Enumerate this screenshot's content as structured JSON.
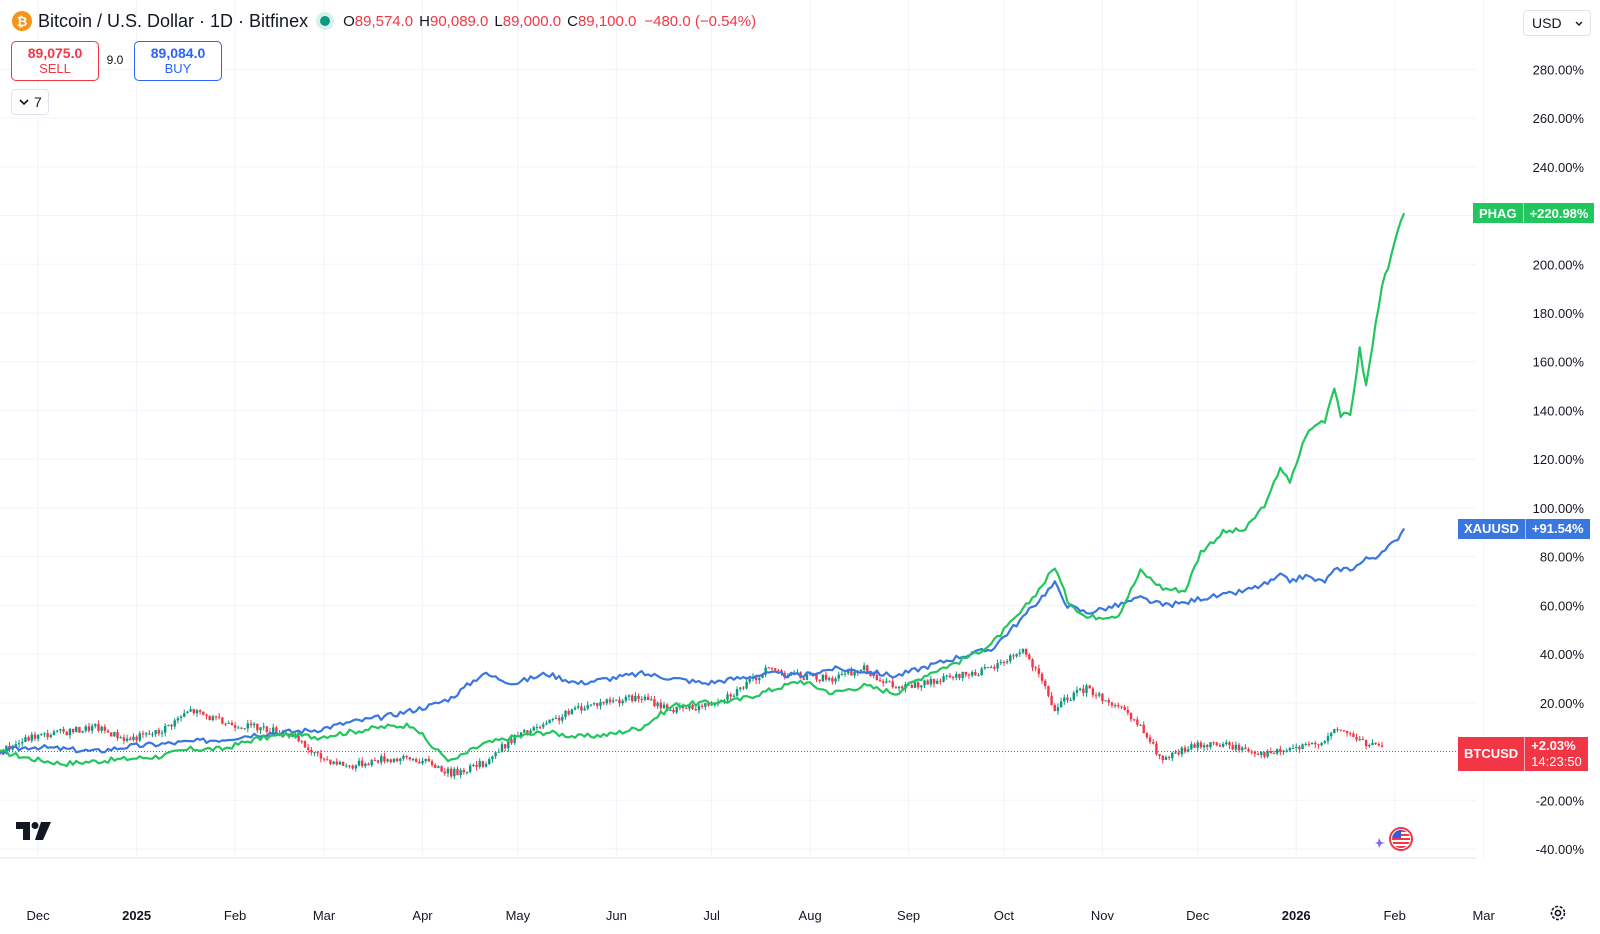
{
  "header": {
    "logo_glyph": "₿",
    "title": "Bitcoin / U.S. Dollar · 1D · Bitfinex",
    "ohlc": [
      {
        "k": "O",
        "v": "89,574.0"
      },
      {
        "k": "H",
        "v": "90,089.0"
      },
      {
        "k": "L",
        "v": "89,000.0"
      },
      {
        "k": "C",
        "v": "89,100.0"
      }
    ],
    "change": "−480.0 (−0.54%)"
  },
  "trade": {
    "sell_price": "89,075.0",
    "sell_label": "SELL",
    "spread": "9.0",
    "buy_price": "89,084.0",
    "buy_label": "BUY"
  },
  "indicators_toggle": {
    "count": "7",
    "icon": "chevron-down-icon"
  },
  "currency": {
    "value": "USD",
    "icon": "chevron-down-icon"
  },
  "colors": {
    "green": "#22c55e",
    "blue": "#3a76e0",
    "up": "#089981",
    "down": "#f23645",
    "grid": "#f0f3fa"
  },
  "chart_data": {
    "type": "line",
    "title": "",
    "ylabel": "",
    "y_unit": "%",
    "ylim": [
      -40,
      290
    ],
    "y_ticks": [
      "280.00%",
      "260.00%",
      "240.00%",
      "220.00%",
      "200.00%",
      "180.00%",
      "160.00%",
      "140.00%",
      "120.00%",
      "100.00%",
      "80.00%",
      "60.00%",
      "40.00%",
      "20.00%",
      "0.00%",
      "-20.00%",
      "-40.00%"
    ],
    "y_tick_values": [
      280,
      260,
      240,
      220,
      200,
      180,
      160,
      140,
      120,
      100,
      80,
      60,
      40,
      20,
      0,
      -20,
      -40
    ],
    "x_ticks": [
      {
        "label": "Dec",
        "date": "2024-12-01"
      },
      {
        "label": "2025",
        "date": "2025-01-01",
        "bold": true
      },
      {
        "label": "Feb",
        "date": "2025-02-01"
      },
      {
        "label": "Mar",
        "date": "2025-03-01"
      },
      {
        "label": "Apr",
        "date": "2025-04-01"
      },
      {
        "label": "May",
        "date": "2025-05-01"
      },
      {
        "label": "Jun",
        "date": "2025-06-01"
      },
      {
        "label": "Jul",
        "date": "2025-07-01"
      },
      {
        "label": "Aug",
        "date": "2025-08-01"
      },
      {
        "label": "Sep",
        "date": "2025-09-01"
      },
      {
        "label": "Oct",
        "date": "2025-10-01"
      },
      {
        "label": "Nov",
        "date": "2025-11-01"
      },
      {
        "label": "Dec",
        "date": "2025-12-01"
      },
      {
        "label": "2026",
        "date": "2026-01-01",
        "bold": true
      },
      {
        "label": "Feb",
        "date": "2026-02-01"
      },
      {
        "label": "Mar",
        "date": "2026-03-01"
      }
    ],
    "xlim": [
      "2024-11-19",
      "2026-03-03"
    ],
    "grid": true,
    "series": [
      {
        "name": "PHAG",
        "kind": "line",
        "color": "#22c55e",
        "last_label": "+220.98%",
        "last_value": 220.98,
        "points": [
          [
            "2024-11-19",
            0
          ],
          [
            "2024-11-29",
            -3
          ],
          [
            "2024-12-09",
            -5
          ],
          [
            "2024-12-19",
            -4
          ],
          [
            "2024-12-29",
            -3
          ],
          [
            "2025-01-08",
            -2
          ],
          [
            "2025-01-18",
            1
          ],
          [
            "2025-01-28",
            1
          ],
          [
            "2025-02-07",
            5
          ],
          [
            "2025-02-17",
            7
          ],
          [
            "2025-02-27",
            6
          ],
          [
            "2025-03-09",
            8
          ],
          [
            "2025-03-19",
            10
          ],
          [
            "2025-03-29",
            11
          ],
          [
            "2025-04-04",
            2
          ],
          [
            "2025-04-10",
            -4
          ],
          [
            "2025-04-20",
            3
          ],
          [
            "2025-04-30",
            6
          ],
          [
            "2025-05-10",
            8
          ],
          [
            "2025-05-20",
            6
          ],
          [
            "2025-05-30",
            7
          ],
          [
            "2025-06-09",
            10
          ],
          [
            "2025-06-19",
            19
          ],
          [
            "2025-06-29",
            20
          ],
          [
            "2025-07-09",
            21
          ],
          [
            "2025-07-19",
            25
          ],
          [
            "2025-07-29",
            29
          ],
          [
            "2025-08-08",
            24
          ],
          [
            "2025-08-18",
            27
          ],
          [
            "2025-08-28",
            24
          ],
          [
            "2025-09-07",
            32
          ],
          [
            "2025-09-17",
            37
          ],
          [
            "2025-09-27",
            44
          ],
          [
            "2025-10-07",
            58
          ],
          [
            "2025-10-14",
            70
          ],
          [
            "2025-10-17",
            76
          ],
          [
            "2025-10-21",
            62
          ],
          [
            "2025-10-27",
            55
          ],
          [
            "2025-11-06",
            56
          ],
          [
            "2025-11-13",
            74
          ],
          [
            "2025-11-20",
            67
          ],
          [
            "2025-11-27",
            66
          ],
          [
            "2025-12-02",
            82
          ],
          [
            "2025-12-09",
            90
          ],
          [
            "2025-12-16",
            91
          ],
          [
            "2025-12-23",
            103
          ],
          [
            "2025-12-27",
            117
          ],
          [
            "2025-12-30",
            110
          ],
          [
            "2026-01-04",
            130
          ],
          [
            "2026-01-08",
            135
          ],
          [
            "2026-01-10",
            136
          ],
          [
            "2026-01-13",
            150
          ],
          [
            "2026-01-15",
            138
          ],
          [
            "2026-01-18",
            138
          ],
          [
            "2026-01-21",
            165
          ],
          [
            "2026-01-23",
            150
          ],
          [
            "2026-01-28",
            192
          ],
          [
            "2026-01-30",
            198
          ],
          [
            "2026-02-01",
            209
          ],
          [
            "2026-02-04",
            220.98
          ]
        ]
      },
      {
        "name": "XAUUSD",
        "kind": "line",
        "color": "#3a76e0",
        "last_label": "+91.54%",
        "last_value": 91.54,
        "points": [
          [
            "2024-11-19",
            0
          ],
          [
            "2024-11-29",
            2
          ],
          [
            "2024-12-09",
            1
          ],
          [
            "2024-12-19",
            0
          ],
          [
            "2024-12-29",
            2
          ],
          [
            "2025-01-08",
            3
          ],
          [
            "2025-01-18",
            4
          ],
          [
            "2025-01-28",
            5
          ],
          [
            "2025-02-07",
            7
          ],
          [
            "2025-02-17",
            8
          ],
          [
            "2025-02-27",
            9
          ],
          [
            "2025-03-09",
            12
          ],
          [
            "2025-03-19",
            14
          ],
          [
            "2025-03-29",
            17
          ],
          [
            "2025-04-04",
            19
          ],
          [
            "2025-04-10",
            22
          ],
          [
            "2025-04-20",
            32
          ],
          [
            "2025-04-30",
            28
          ],
          [
            "2025-05-10",
            32
          ],
          [
            "2025-05-20",
            28
          ],
          [
            "2025-05-30",
            30
          ],
          [
            "2025-06-09",
            32
          ],
          [
            "2025-06-19",
            30
          ],
          [
            "2025-06-29",
            28
          ],
          [
            "2025-07-09",
            30
          ],
          [
            "2025-07-19",
            32
          ],
          [
            "2025-07-29",
            31
          ],
          [
            "2025-08-08",
            34
          ],
          [
            "2025-08-18",
            33
          ],
          [
            "2025-08-28",
            31
          ],
          [
            "2025-09-07",
            35
          ],
          [
            "2025-09-17",
            39
          ],
          [
            "2025-09-27",
            42
          ],
          [
            "2025-10-07",
            55
          ],
          [
            "2025-10-14",
            65
          ],
          [
            "2025-10-17",
            69
          ],
          [
            "2025-10-21",
            60
          ],
          [
            "2025-10-27",
            57
          ],
          [
            "2025-11-06",
            60
          ],
          [
            "2025-11-13",
            63
          ],
          [
            "2025-11-20",
            60
          ],
          [
            "2025-11-27",
            61
          ],
          [
            "2025-12-02",
            63
          ],
          [
            "2025-12-09",
            64
          ],
          [
            "2025-12-16",
            66
          ],
          [
            "2025-12-23",
            69
          ],
          [
            "2025-12-27",
            72
          ],
          [
            "2025-12-30",
            70
          ],
          [
            "2026-01-04",
            72
          ],
          [
            "2026-01-08",
            70
          ],
          [
            "2026-01-10",
            70
          ],
          [
            "2026-01-13",
            74
          ],
          [
            "2026-01-15",
            75
          ],
          [
            "2026-01-18",
            75
          ],
          [
            "2026-01-21",
            77
          ],
          [
            "2026-01-23",
            79
          ],
          [
            "2026-01-28",
            81
          ],
          [
            "2026-01-30",
            84
          ],
          [
            "2026-02-01",
            86
          ],
          [
            "2026-02-04",
            91.54
          ]
        ]
      },
      {
        "name": "BTCUSD",
        "kind": "candles",
        "last_label": "+2.03%",
        "last_value": 2.03,
        "countdown": "14:23:50",
        "points": [
          [
            "2024-11-19",
            0
          ],
          [
            "2024-11-29",
            6
          ],
          [
            "2024-12-09",
            8
          ],
          [
            "2024-12-19",
            10
          ],
          [
            "2024-12-29",
            5
          ],
          [
            "2025-01-08",
            8
          ],
          [
            "2025-01-18",
            17
          ],
          [
            "2025-01-28",
            12
          ],
          [
            "2025-02-07",
            10
          ],
          [
            "2025-02-17",
            8
          ],
          [
            "2025-02-27",
            -2
          ],
          [
            "2025-03-09",
            -6
          ],
          [
            "2025-03-19",
            -3
          ],
          [
            "2025-03-29",
            -3
          ],
          [
            "2025-04-04",
            -5
          ],
          [
            "2025-04-10",
            -9
          ],
          [
            "2025-04-20",
            -5
          ],
          [
            "2025-04-30",
            6
          ],
          [
            "2025-05-10",
            11
          ],
          [
            "2025-05-20",
            18
          ],
          [
            "2025-05-30",
            21
          ],
          [
            "2025-06-09",
            22
          ],
          [
            "2025-06-19",
            17
          ],
          [
            "2025-06-29",
            19
          ],
          [
            "2025-07-09",
            25
          ],
          [
            "2025-07-19",
            34
          ],
          [
            "2025-07-29",
            31
          ],
          [
            "2025-08-08",
            30
          ],
          [
            "2025-08-18",
            34
          ],
          [
            "2025-08-28",
            26
          ],
          [
            "2025-09-07",
            28
          ],
          [
            "2025-09-17",
            31
          ],
          [
            "2025-09-27",
            34
          ],
          [
            "2025-10-07",
            42
          ],
          [
            "2025-10-14",
            26
          ],
          [
            "2025-10-17",
            17
          ],
          [
            "2025-10-21",
            22
          ],
          [
            "2025-10-27",
            26
          ],
          [
            "2025-11-06",
            18
          ],
          [
            "2025-11-13",
            10
          ],
          [
            "2025-11-20",
            -4
          ],
          [
            "2025-11-27",
            1
          ],
          [
            "2025-12-02",
            3
          ],
          [
            "2025-12-09",
            3
          ],
          [
            "2025-12-16",
            1
          ],
          [
            "2025-12-23",
            -1
          ],
          [
            "2025-12-27",
            0
          ],
          [
            "2025-12-30",
            1
          ],
          [
            "2026-01-04",
            2
          ],
          [
            "2026-01-08",
            4
          ],
          [
            "2026-01-10",
            5
          ],
          [
            "2026-01-13",
            8
          ],
          [
            "2026-01-15",
            9
          ],
          [
            "2026-01-18",
            7
          ],
          [
            "2026-01-21",
            5
          ],
          [
            "2026-01-23",
            3
          ],
          [
            "2026-01-28",
            2.03
          ]
        ]
      }
    ]
  }
}
